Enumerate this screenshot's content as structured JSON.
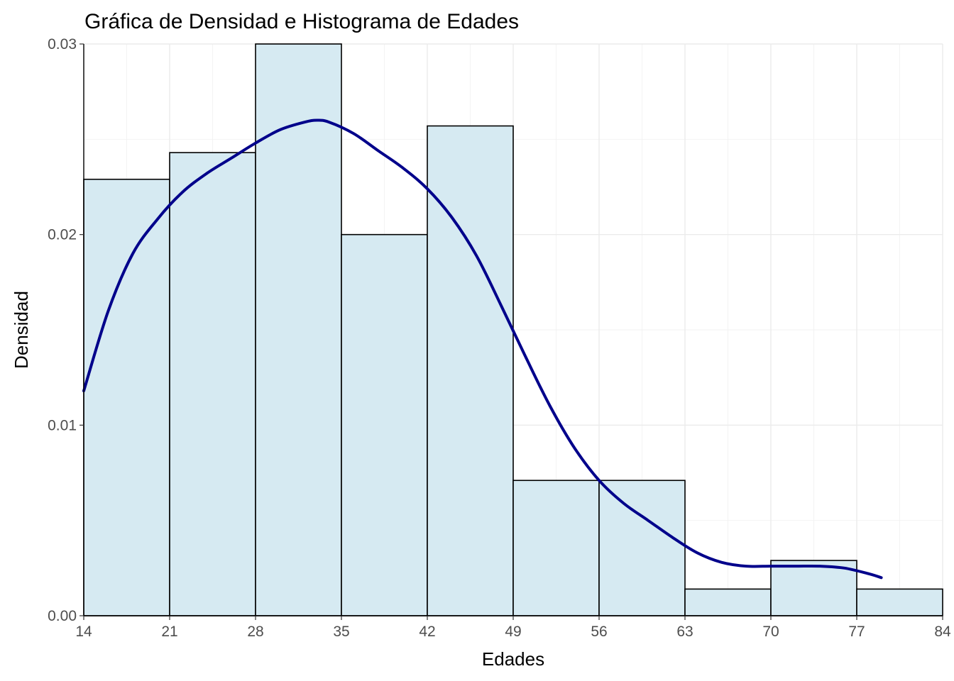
{
  "chart_data": {
    "type": "bar",
    "subtype": "histogram_with_density",
    "title": "Gráfica de Densidad e Histograma de Edades",
    "xlabel": "Edades",
    "ylabel": "Densidad",
    "xlim": [
      14,
      84
    ],
    "ylim": [
      0,
      0.03
    ],
    "x_ticks": [
      14,
      21,
      28,
      35,
      42,
      49,
      56,
      63,
      70,
      77,
      84
    ],
    "y_ticks": [
      0.0,
      0.01,
      0.02,
      0.03
    ],
    "y_tick_labels": [
      "0.00",
      "0.01",
      "0.02",
      "0.03"
    ],
    "grid": "on",
    "bins": [
      {
        "start": 14,
        "end": 21,
        "density": 0.0229
      },
      {
        "start": 21,
        "end": 28,
        "density": 0.0243
      },
      {
        "start": 28,
        "end": 35,
        "density": 0.03
      },
      {
        "start": 35,
        "end": 42,
        "density": 0.02
      },
      {
        "start": 42,
        "end": 49,
        "density": 0.0257
      },
      {
        "start": 49,
        "end": 56,
        "density": 0.0071
      },
      {
        "start": 56,
        "end": 63,
        "density": 0.0071
      },
      {
        "start": 63,
        "end": 70,
        "density": 0.0014
      },
      {
        "start": 70,
        "end": 77,
        "density": 0.0029
      },
      {
        "start": 77,
        "end": 84,
        "density": 0.0014
      }
    ],
    "density_curve": {
      "x": [
        14,
        16,
        18,
        20,
        22,
        24,
        26,
        28,
        30,
        32,
        33,
        34,
        36,
        38,
        40,
        42,
        44,
        46,
        48,
        50,
        52,
        54,
        56,
        58,
        60,
        62,
        64,
        66,
        68,
        70,
        72,
        74,
        76,
        78,
        79
      ],
      "y": [
        0.0118,
        0.016,
        0.019,
        0.0208,
        0.0222,
        0.0232,
        0.024,
        0.0248,
        0.0255,
        0.0259,
        0.026,
        0.0259,
        0.0253,
        0.0244,
        0.0235,
        0.0224,
        0.0209,
        0.0189,
        0.0163,
        0.0136,
        0.011,
        0.0088,
        0.0071,
        0.0059,
        0.005,
        0.0041,
        0.0033,
        0.0028,
        0.0026,
        0.0026,
        0.0026,
        0.0026,
        0.0025,
        0.0022,
        0.002
      ]
    },
    "colors": {
      "bar_fill": "#d6eaf2",
      "bar_stroke": "#000000",
      "density_line": "#00008b",
      "grid": "#ebebeb"
    }
  }
}
